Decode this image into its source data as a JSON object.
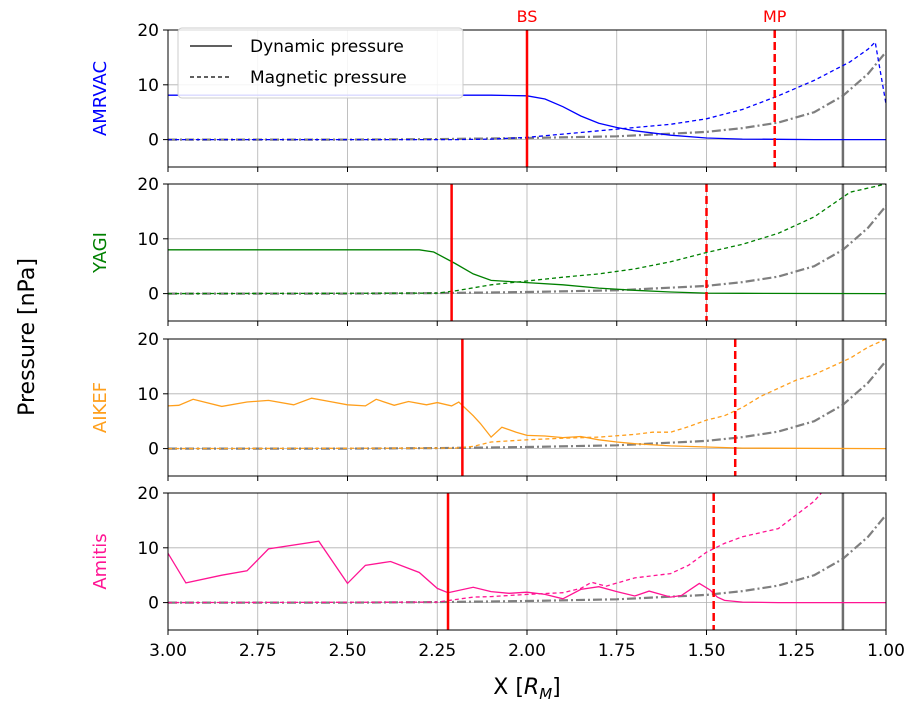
{
  "figure": {
    "ylabel": "Pressure [nPa]",
    "xlabel_main": "X [",
    "xlabel_var": "R",
    "xlabel_sub": "M",
    "xlabel_end": "]"
  },
  "legend": {
    "solid_label": "Dynamic pressure",
    "dashed_label": "Magnetic pressure"
  },
  "markers": {
    "bs_label": "BS",
    "mp_label": "MP",
    "color": "#ff0000"
  },
  "chart_data": {
    "type": "line",
    "x_axis": {
      "reversed": true,
      "xlim": [
        3.0,
        1.0
      ],
      "ticks": [
        3.0,
        2.75,
        2.5,
        2.25,
        2.0,
        1.75,
        1.5,
        1.25,
        1.0
      ],
      "tick_labels": [
        "3.00",
        "2.75",
        "2.50",
        "2.25",
        "2.00",
        "1.75",
        "1.50",
        "1.25",
        "1.00"
      ]
    },
    "ylim": [
      -5,
      20
    ],
    "yticks": [
      0,
      10,
      20
    ],
    "grid": true,
    "legend_position": "upper-left of top panel",
    "reference": {
      "style": "dash-dot",
      "color": "#7f7f7f",
      "x": [
        3.0,
        2.75,
        2.5,
        2.25,
        2.0,
        1.75,
        1.5,
        1.4,
        1.3,
        1.2,
        1.12,
        1.05,
        1.0
      ],
      "y": [
        0,
        0,
        0,
        0.1,
        0.3,
        0.6,
        1.4,
        2.1,
        3.1,
        5.0,
        8.0,
        12.0,
        16.0
      ],
      "vertical_line_x": 1.12
    },
    "panels": [
      {
        "name": "AMRVAC",
        "color": "#0000ff",
        "bs": 2.0,
        "mp": 1.31,
        "dynamic": {
          "x": [
            3.0,
            2.25,
            2.1,
            2.0,
            1.95,
            1.9,
            1.85,
            1.8,
            1.75,
            1.7,
            1.6,
            1.5,
            1.4,
            1.3,
            1.2,
            1.1,
            1.0
          ],
          "y": [
            8.1,
            8.1,
            8.1,
            8.0,
            7.4,
            6.0,
            4.3,
            3.0,
            2.2,
            1.6,
            0.8,
            0.3,
            0.1,
            0.05,
            0.0,
            0.0,
            0.0
          ]
        },
        "magnetic": {
          "x": [
            3.0,
            2.2,
            2.1,
            2.0,
            1.9,
            1.8,
            1.7,
            1.6,
            1.5,
            1.4,
            1.3,
            1.2,
            1.1,
            1.05,
            1.03,
            1.0
          ],
          "y": [
            0,
            0,
            0.1,
            0.4,
            1.0,
            1.6,
            2.2,
            2.8,
            3.8,
            5.5,
            8.0,
            10.8,
            14.2,
            16.5,
            17.8,
            6.5
          ]
        }
      },
      {
        "name": "YAGI",
        "color": "#008000",
        "bs": 2.21,
        "mp": 1.5,
        "dynamic": {
          "x": [
            3.0,
            2.4,
            2.3,
            2.26,
            2.2,
            2.15,
            2.1,
            2.05,
            2.0,
            1.9,
            1.8,
            1.7,
            1.6,
            1.5,
            1.4,
            1.0
          ],
          "y": [
            8.0,
            8.0,
            8.0,
            7.6,
            5.5,
            3.6,
            2.4,
            2.2,
            2.0,
            1.6,
            1.0,
            0.6,
            0.3,
            0.1,
            0.05,
            0.0
          ]
        },
        "magnetic": {
          "x": [
            3.0,
            2.25,
            2.2,
            2.1,
            2.0,
            1.9,
            1.8,
            1.7,
            1.6,
            1.5,
            1.4,
            1.3,
            1.2,
            1.1,
            1.0
          ],
          "y": [
            0,
            0.1,
            0.5,
            1.6,
            2.3,
            3.0,
            3.6,
            4.5,
            5.8,
            7.5,
            9.0,
            11.0,
            14.0,
            18.5,
            20.0
          ]
        }
      },
      {
        "name": "AIKEF",
        "color": "#ff9f1c",
        "bs": 2.18,
        "mp": 1.42,
        "dynamic": {
          "x": [
            3.0,
            2.97,
            2.93,
            2.85,
            2.78,
            2.72,
            2.65,
            2.6,
            2.55,
            2.5,
            2.45,
            2.42,
            2.37,
            2.33,
            2.28,
            2.25,
            2.21,
            2.19,
            2.15,
            2.13,
            2.1,
            2.07,
            2.03,
            2.0,
            1.95,
            1.9,
            1.85,
            1.8,
            1.75,
            1.7,
            1.6,
            1.5,
            1.4,
            1.0
          ],
          "y": [
            7.8,
            7.9,
            9.0,
            7.7,
            8.5,
            8.8,
            8.0,
            9.2,
            8.6,
            8.0,
            7.8,
            9.0,
            7.9,
            8.6,
            8.0,
            8.4,
            7.8,
            8.5,
            6.0,
            4.6,
            2.1,
            3.9,
            3.0,
            2.4,
            2.3,
            2.0,
            2.2,
            1.6,
            1.2,
            0.9,
            0.5,
            0.3,
            0.1,
            0.0
          ]
        },
        "magnetic": {
          "x": [
            3.0,
            2.2,
            2.15,
            2.1,
            2.0,
            1.9,
            1.8,
            1.7,
            1.65,
            1.6,
            1.55,
            1.5,
            1.45,
            1.4,
            1.35,
            1.3,
            1.25,
            1.2,
            1.15,
            1.1,
            1.05,
            1.0
          ],
          "y": [
            0,
            0.1,
            0.4,
            1.2,
            1.6,
            1.9,
            2.1,
            2.6,
            3.0,
            3.0,
            4.0,
            5.2,
            6.0,
            7.5,
            9.5,
            11.0,
            12.5,
            13.5,
            15.0,
            16.5,
            18.5,
            20.0
          ]
        }
      },
      {
        "name": "Amitis",
        "color": "#ff1493",
        "bs": 2.22,
        "mp": 1.48,
        "dynamic": {
          "x": [
            3.0,
            2.95,
            2.85,
            2.78,
            2.72,
            2.58,
            2.5,
            2.45,
            2.38,
            2.3,
            2.25,
            2.22,
            2.15,
            2.1,
            2.05,
            2.0,
            1.95,
            1.9,
            1.85,
            1.8,
            1.75,
            1.7,
            1.66,
            1.6,
            1.57,
            1.52,
            1.49,
            1.47,
            1.45,
            1.4,
            1.3,
            1.0
          ],
          "y": [
            9.0,
            3.6,
            5.0,
            5.8,
            9.8,
            11.2,
            3.5,
            6.8,
            7.5,
            5.5,
            2.6,
            1.8,
            2.8,
            2.0,
            1.7,
            1.9,
            1.5,
            0.7,
            2.4,
            2.9,
            2.0,
            1.2,
            2.1,
            1.0,
            1.3,
            3.5,
            2.3,
            1.0,
            0.4,
            0.1,
            0.0,
            0.0
          ]
        },
        "magnetic": {
          "x": [
            3.0,
            2.25,
            2.15,
            2.1,
            2.0,
            1.9,
            1.85,
            1.82,
            1.78,
            1.7,
            1.6,
            1.55,
            1.5,
            1.45,
            1.4,
            1.3,
            1.25,
            1.2,
            1.18
          ],
          "y": [
            0,
            0.1,
            1.0,
            1.1,
            1.5,
            1.8,
            2.6,
            3.7,
            3.0,
            4.5,
            5.3,
            6.8,
            9.2,
            10.8,
            12.0,
            13.5,
            16.0,
            18.5,
            20.0
          ]
        }
      }
    ]
  }
}
